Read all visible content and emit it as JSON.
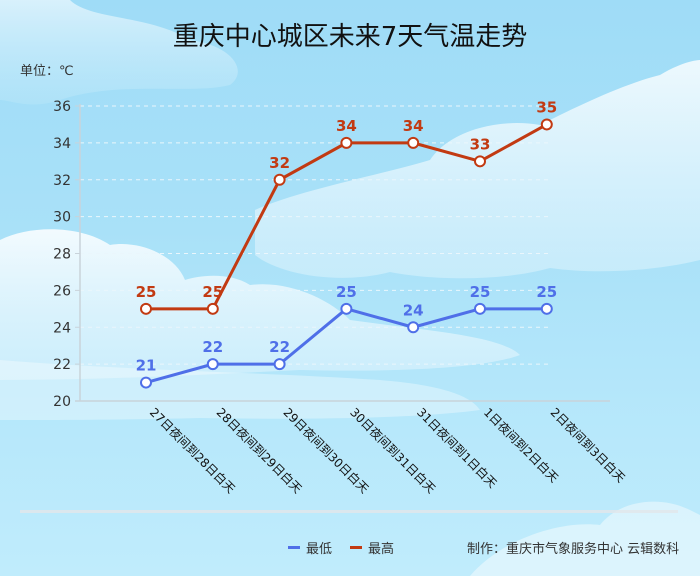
{
  "title": "重庆中心城区未来7天气温走势",
  "unit_label": "单位：℃",
  "legend": [
    {
      "label": "最低",
      "color": "#4f6fe8"
    },
    {
      "label": "最高",
      "color": "#c23a12"
    }
  ],
  "credit": "制作：重庆市气象服务中心 云辑数科",
  "colors": {
    "low": "#4f6fe8",
    "high": "#c23a12",
    "grid": "#e8f4fb",
    "axis": "#c9d3da"
  },
  "chart_data": {
    "type": "line",
    "title": "重庆中心城区未来7天气温走势",
    "xlabel": "",
    "ylabel": "单位：℃",
    "ylim": [
      20,
      36
    ],
    "yticks": [
      20,
      22,
      24,
      26,
      28,
      30,
      32,
      34,
      36
    ],
    "grid": true,
    "legend_position": "bottom",
    "categories": [
      "27日夜间到28日白天",
      "28日夜间到29日白天",
      "29日夜间到30日白天",
      "30日夜间到31日白天",
      "31日夜间到1日白天",
      "1日夜间到2日白天",
      "2日夜间到3日白天"
    ],
    "series": [
      {
        "name": "最低",
        "color": "#4f6fe8",
        "values": [
          21,
          22,
          22,
          25,
          24,
          25,
          25
        ]
      },
      {
        "name": "最高",
        "color": "#c23a12",
        "values": [
          25,
          25,
          32,
          34,
          34,
          33,
          35
        ]
      }
    ]
  }
}
